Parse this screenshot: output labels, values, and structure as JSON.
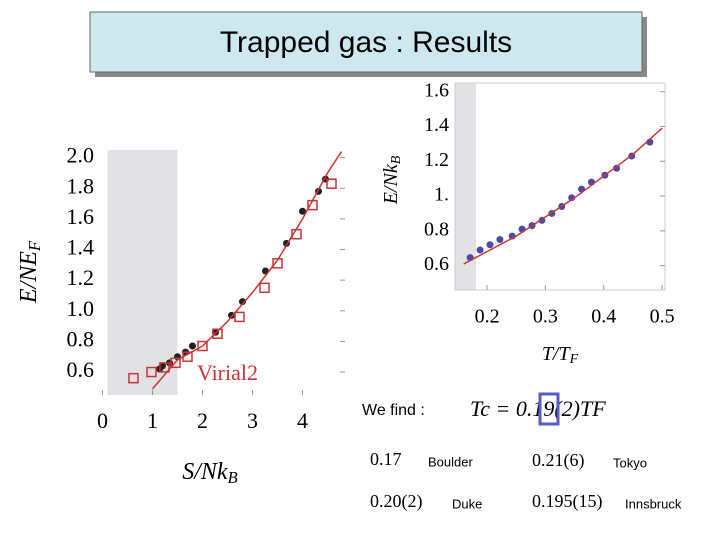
{
  "title": "Trapped gas : Results",
  "chart_data": [
    {
      "type": "scatter",
      "xlabel": "S/Nk_B",
      "ylabel": "E/NE_F",
      "annotation": "Virial2",
      "xlim": [
        -0.05,
        4.85
      ],
      "ylim": [
        0.45,
        2.05
      ],
      "xticks": [
        0,
        1,
        2,
        3,
        4
      ],
      "yticks": [
        {
          "value": 2,
          "label": "2.0"
        },
        1.8,
        1.6,
        1.4,
        1.2,
        {
          "value": 1,
          "label": "1.0"
        },
        0.8,
        0.6
      ],
      "shaded_region": [
        0.1,
        1.5
      ],
      "series": [
        {
          "marker": "circle",
          "color": "#222222",
          "x": [
            1.14,
            1.2,
            1.34,
            1.5,
            1.66,
            1.8,
            2.26,
            2.58,
            2.8,
            3.26,
            3.68,
            4.0,
            4.32,
            4.46
          ],
          "values": [
            0.62,
            0.64,
            0.66,
            0.7,
            0.73,
            0.77,
            0.86,
            0.97,
            1.06,
            1.26,
            1.44,
            1.65,
            1.78,
            1.86
          ]
        },
        {
          "marker": "square",
          "color": "#cc3333",
          "x": [
            0.62,
            0.98,
            1.24,
            1.46,
            1.7,
            2.0,
            2.3,
            2.74,
            3.24,
            3.5,
            3.88,
            4.2,
            4.58
          ],
          "values": [
            0.56,
            0.6,
            0.63,
            0.66,
            0.7,
            0.77,
            0.85,
            0.96,
            1.15,
            1.31,
            1.5,
            1.69,
            1.83
          ]
        },
        {
          "marker": "line",
          "color": "#cc3333",
          "x": [
            1.0,
            1.5,
            2.0,
            2.5,
            3.0,
            3.5,
            4.0,
            4.5,
            4.78
          ],
          "values": [
            0.49,
            0.68,
            0.77,
            0.93,
            1.12,
            1.33,
            1.6,
            1.9,
            2.04
          ]
        }
      ]
    },
    {
      "type": "scatter",
      "xlabel": "T/T_F",
      "ylabel": "E/Nk_B",
      "xlim": [
        0.145,
        0.505
      ],
      "ylim": [
        0.46,
        1.65
      ],
      "xticks": [
        0.2,
        0.3,
        0.4,
        0.5
      ],
      "yticks": [
        1.6,
        1.4,
        1.2,
        {
          "value": 1,
          "label": "1."
        },
        0.8,
        0.6
      ],
      "shaded_region": [
        0.145,
        0.181
      ],
      "series": [
        {
          "marker": "circle",
          "color": "#4a4aa8",
          "x": [
            0.171,
            0.188,
            0.205,
            0.222,
            0.243,
            0.26,
            0.277,
            0.294,
            0.311,
            0.328,
            0.345,
            0.362,
            0.379,
            0.402,
            0.422,
            0.448,
            0.479
          ],
          "values": [
            0.646,
            0.69,
            0.72,
            0.75,
            0.77,
            0.81,
            0.83,
            0.86,
            0.9,
            0.94,
            0.99,
            1.04,
            1.08,
            1.12,
            1.16,
            1.23,
            1.31
          ]
        },
        {
          "marker": "line",
          "color": "#cc3333",
          "x": [
            0.16,
            0.25,
            0.35,
            0.45,
            0.5
          ],
          "values": [
            0.61,
            0.77,
            0.99,
            1.24,
            1.39
          ]
        }
      ]
    }
  ],
  "results": {
    "intro": "We find :",
    "formula": "Tc = 0.19(2)TF",
    "entries": [
      {
        "value": "0.17",
        "label": "Boulder"
      },
      {
        "value": "0.21(6)",
        "label": "Tokyo"
      },
      {
        "value": "0.20(2)",
        "label": "Duke"
      },
      {
        "value": "0.195(15)",
        "label": "Innsbruck"
      }
    ]
  }
}
